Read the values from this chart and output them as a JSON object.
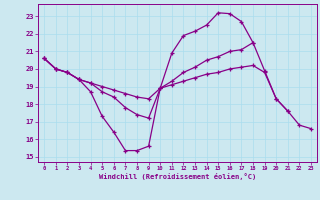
{
  "bg_color": "#cce8f0",
  "line_color": "#880088",
  "grid_color": "#aaddee",
  "xlabel": "Windchill (Refroidissement éolien,°C)",
  "xlim": [
    -0.5,
    23.5
  ],
  "ylim": [
    14.7,
    23.7
  ],
  "yticks": [
    15,
    16,
    17,
    18,
    19,
    20,
    21,
    22,
    23
  ],
  "xticks": [
    0,
    1,
    2,
    3,
    4,
    5,
    6,
    7,
    8,
    9,
    10,
    11,
    12,
    13,
    14,
    15,
    16,
    17,
    18,
    19,
    20,
    21,
    22,
    23
  ],
  "series": [
    {
      "x": [
        0,
        1,
        2,
        3,
        4,
        5,
        6,
        7,
        8,
        9,
        10,
        11,
        12,
        13,
        14,
        15,
        16,
        17,
        18
      ],
      "y": [
        20.6,
        20.0,
        19.8,
        19.4,
        18.7,
        17.3,
        16.4,
        15.35,
        15.35,
        15.6,
        18.9,
        20.9,
        21.9,
        22.15,
        22.5,
        23.2,
        23.15,
        22.7,
        21.5
      ]
    },
    {
      "x": [
        0,
        1,
        2,
        3,
        4,
        5,
        6,
        7,
        8,
        9,
        10,
        11,
        12,
        13,
        14,
        15,
        16,
        17,
        18,
        19,
        20,
        21,
        22,
        23
      ],
      "y": [
        20.6,
        20.0,
        19.8,
        19.4,
        19.2,
        18.7,
        18.4,
        17.8,
        17.4,
        17.2,
        18.9,
        19.3,
        19.8,
        20.1,
        20.5,
        20.7,
        21.0,
        21.1,
        21.5,
        19.9,
        18.3,
        17.6,
        null,
        null
      ]
    },
    {
      "x": [
        0,
        1,
        2,
        3,
        4,
        5,
        6,
        7,
        8,
        9,
        10,
        11,
        12,
        13,
        14,
        15,
        16,
        17,
        18,
        19,
        20,
        21,
        22,
        23
      ],
      "y": [
        20.6,
        20.0,
        19.8,
        19.4,
        19.2,
        19.0,
        18.8,
        18.6,
        18.4,
        18.3,
        18.9,
        19.1,
        19.3,
        19.5,
        19.7,
        19.8,
        20.0,
        20.1,
        20.2,
        19.8,
        18.3,
        17.6,
        16.8,
        16.6
      ]
    }
  ]
}
